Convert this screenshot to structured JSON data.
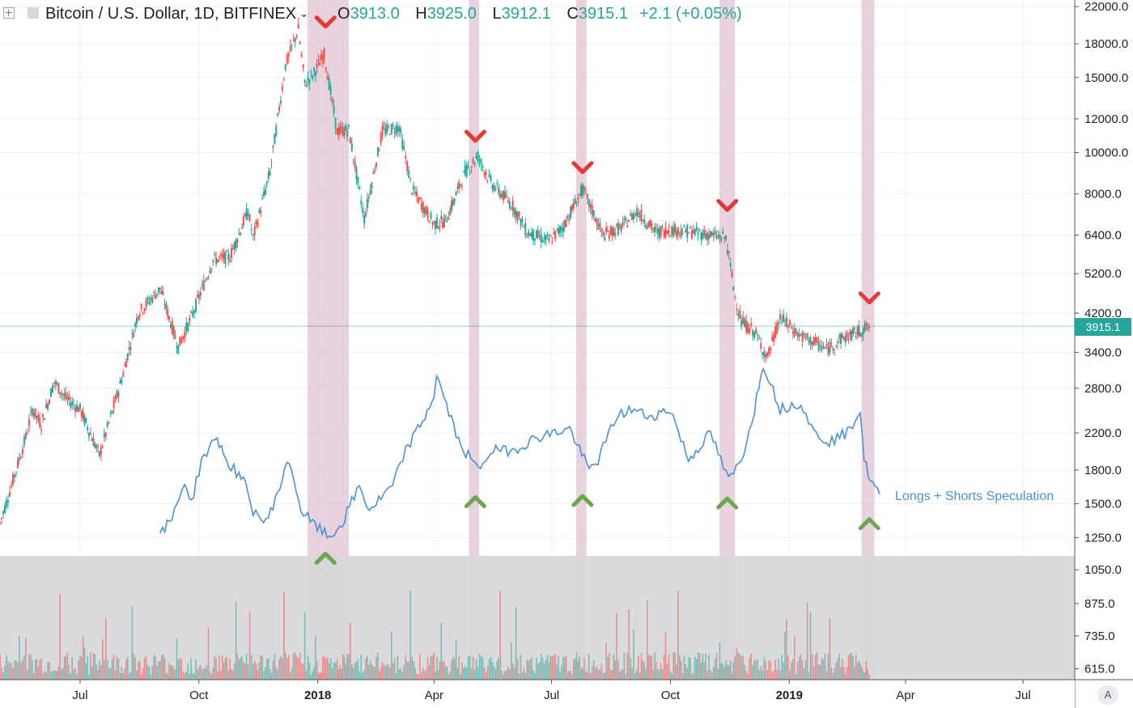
{
  "header": {
    "symbol": "Bitcoin / U.S. Dollar, 1D, BITFINEX",
    "open_label": "O",
    "open": "3913.0",
    "high_label": "H",
    "high": "3925.0",
    "low_label": "L",
    "low": "3912.1",
    "close_label": "C",
    "close": "3915.1",
    "change": "+2.1 (+0.05%)"
  },
  "last_price_tag": "3915.1",
  "series_label": "Longs + Shorts Speculation",
  "auto_label": "A",
  "colors": {
    "up": "#26a69a",
    "down": "#ef5350",
    "speculation": "#4a90d9",
    "highlight": "#d8b4c8",
    "sell_marker": "#e53935",
    "buy_marker": "#6aa84f"
  },
  "chart_data": {
    "type": "candlestick",
    "title": "Bitcoin / U.S. Dollar, 1D, BITFINEX",
    "y_scale": "log",
    "ylim": [
      580,
      22800
    ],
    "y_ticks": [
      "22000.0",
      "18000.0",
      "15000.0",
      "12000.0",
      "10000.0",
      "8000.0",
      "6400.0",
      "5200.0",
      "4200.0",
      "3400.0",
      "2800.0",
      "2200.0",
      "1800.0",
      "1500.0",
      "1250.0",
      "1050.0",
      "875.0",
      "735.0",
      "615.0"
    ],
    "x_ticks": [
      "Jul",
      "Oct",
      "2018",
      "Apr",
      "Jul",
      "Oct",
      "2019",
      "Apr",
      "Jul"
    ],
    "price_series": {
      "name": "BTC/USD close",
      "x": [
        "2017-04-30",
        "2017-05-10",
        "2017-05-20",
        "2017-05-25",
        "2017-06-01",
        "2017-06-11",
        "2017-06-20",
        "2017-07-01",
        "2017-07-16",
        "2017-08-01",
        "2017-08-15",
        "2017-09-01",
        "2017-09-15",
        "2017-09-25",
        "2017-10-12",
        "2017-10-25",
        "2017-11-08",
        "2017-11-12",
        "2017-11-25",
        "2017-12-07",
        "2017-12-17",
        "2017-12-22",
        "2017-12-28",
        "2018-01-06",
        "2018-01-16",
        "2018-01-25",
        "2018-02-06",
        "2018-02-20",
        "2018-03-05",
        "2018-03-15",
        "2018-04-01",
        "2018-04-10",
        "2018-04-25",
        "2018-05-05",
        "2018-05-15",
        "2018-06-01",
        "2018-06-12",
        "2018-06-29",
        "2018-07-10",
        "2018-07-25",
        "2018-08-10",
        "2018-08-25",
        "2018-09-05",
        "2018-09-20",
        "2018-10-01",
        "2018-10-20",
        "2018-11-01",
        "2018-11-13",
        "2018-11-20",
        "2018-11-25",
        "2018-12-05",
        "2018-12-15",
        "2018-12-25",
        "2019-01-10",
        "2019-01-20",
        "2019-01-30",
        "2019-02-10",
        "2019-02-24",
        "2019-03-05"
      ],
      "close": [
        1350,
        1700,
        2150,
        2500,
        2300,
        2900,
        2650,
        2500,
        1950,
        2850,
        4200,
        4800,
        3500,
        4100,
        5600,
        5700,
        7300,
        6300,
        9000,
        16000,
        19500,
        14500,
        15200,
        17000,
        11200,
        11300,
        7000,
        11200,
        11500,
        8200,
        6800,
        6900,
        9000,
        9800,
        8500,
        7500,
        6500,
        6200,
        6700,
        8200,
        6400,
        6700,
        7300,
        6500,
        6600,
        6500,
        6400,
        6300,
        4600,
        4000,
        3800,
        3300,
        4100,
        3700,
        3600,
        3450,
        3650,
        3800,
        3915.1
      ]
    },
    "speculation_series": {
      "name": "Longs + Shorts Speculation",
      "x": [
        "2017-09-01",
        "2017-09-10",
        "2017-09-20",
        "2017-09-25",
        "2017-10-03",
        "2017-10-15",
        "2017-10-22",
        "2017-11-01",
        "2017-11-06",
        "2017-11-12",
        "2017-11-22",
        "2017-12-01",
        "2017-12-10",
        "2017-12-19",
        "2017-12-28",
        "2018-01-10",
        "2018-01-20",
        "2018-02-02",
        "2018-02-10",
        "2018-02-28",
        "2018-03-10",
        "2018-03-25",
        "2018-04-01",
        "2018-04-03",
        "2018-04-20",
        "2018-05-05",
        "2018-05-15",
        "2018-06-01",
        "2018-06-20",
        "2018-07-15",
        "2018-07-30",
        "2018-08-06",
        "2018-08-20",
        "2018-09-01",
        "2018-09-15",
        "2018-10-01",
        "2018-10-15",
        "2018-11-01",
        "2018-11-15",
        "2018-11-25",
        "2018-12-05",
        "2018-12-12",
        "2018-12-25",
        "2019-01-10",
        "2019-01-20",
        "2019-02-01",
        "2019-02-15",
        "2019-02-25",
        "2019-02-28",
        "2019-03-05",
        "2019-03-12"
      ],
      "value": [
        1270,
        1380,
        1700,
        1500,
        1900,
        2150,
        1900,
        1750,
        1650,
        1450,
        1350,
        1600,
        1900,
        1450,
        1350,
        1250,
        1350,
        1650,
        1450,
        1650,
        2000,
        2400,
        2700,
        3000,
        2100,
        1800,
        2000,
        2000,
        2150,
        2250,
        1800,
        1900,
        2400,
        2500,
        2400,
        2500,
        1900,
        2200,
        1700,
        1900,
        2500,
        3200,
        2500,
        2600,
        2200,
        2100,
        2200,
        2500,
        1900,
        1700,
        1580
      ]
    },
    "highlight_periods": [
      [
        "2017-12-24",
        "2018-01-25"
      ],
      [
        "2018-04-28",
        "2018-05-06"
      ],
      [
        "2018-07-20",
        "2018-07-28"
      ],
      [
        "2018-11-08",
        "2018-11-20"
      ],
      [
        "2019-02-26",
        "2019-03-08"
      ]
    ],
    "sell_markers": [
      [
        "2018-01-07",
        20200
      ],
      [
        "2018-05-03",
        10900
      ],
      [
        "2018-07-25",
        9200
      ],
      [
        "2018-11-14",
        7500
      ],
      [
        "2019-03-04",
        4550
      ]
    ],
    "buy_markers": [
      [
        "2018-01-07",
        1120
      ],
      [
        "2018-05-03",
        1520
      ],
      [
        "2018-07-25",
        1530
      ],
      [
        "2018-11-14",
        1510
      ],
      [
        "2019-03-04",
        1350
      ]
    ],
    "last_price": 3915.1,
    "volume_area": true,
    "legend": "series label at right end of speculation line"
  }
}
